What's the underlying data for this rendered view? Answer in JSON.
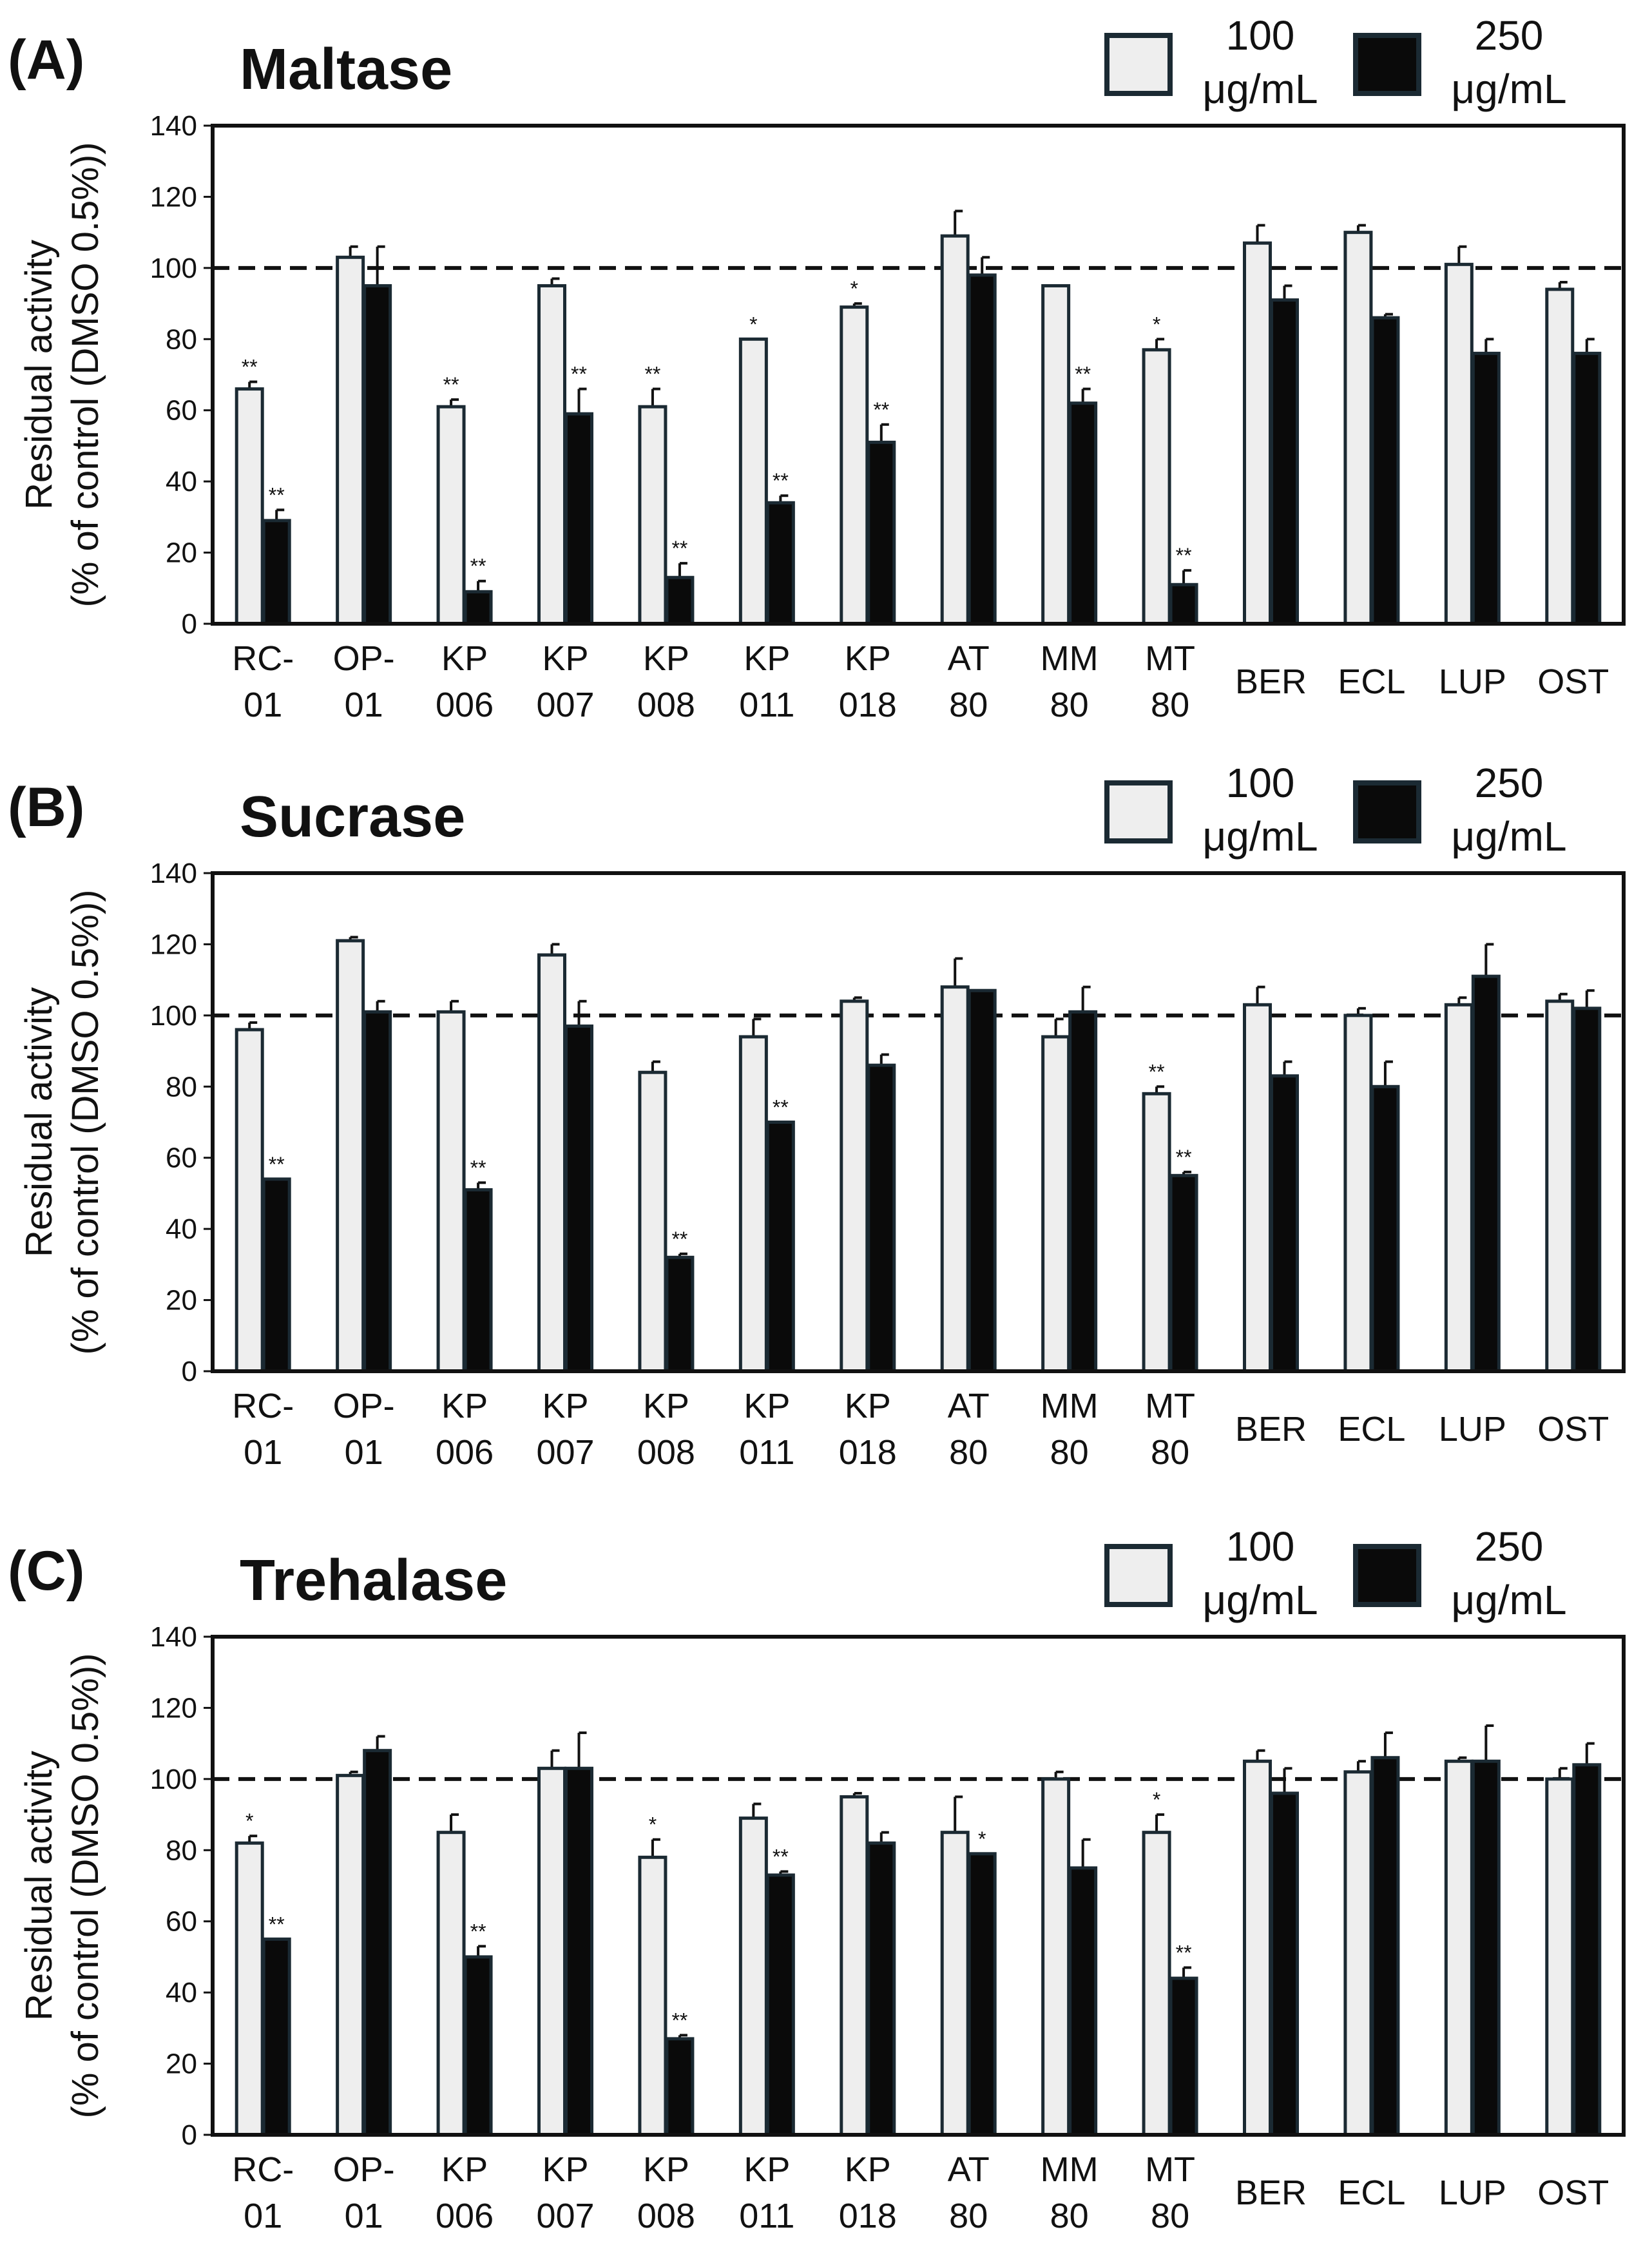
{
  "chart_data": [
    {
      "type": "bar",
      "panel_label": "(A)",
      "title": "Maltase",
      "ylabel_line1": "Residual activity",
      "ylabel_line2": "(% of control (DMSO 0.5%))",
      "xlabel": "",
      "ylim": [
        0,
        140
      ],
      "yticks": [
        0,
        20,
        40,
        60,
        80,
        100,
        120,
        140
      ],
      "reference_line": 100,
      "grid": false,
      "legend_position": "top-right",
      "categories": [
        {
          "line1": "RC-",
          "line2": "01"
        },
        {
          "line1": "OP-",
          "line2": "01"
        },
        {
          "line1": "KP",
          "line2": "006"
        },
        {
          "line1": "KP",
          "line2": "007"
        },
        {
          "line1": "KP",
          "line2": "008"
        },
        {
          "line1": "KP",
          "line2": "011"
        },
        {
          "line1": "KP",
          "line2": "018"
        },
        {
          "line1": "AT",
          "line2": "80"
        },
        {
          "line1": "MM",
          "line2": "80"
        },
        {
          "line1": "MT",
          "line2": "80"
        },
        {
          "line1": "BER",
          "line2": ""
        },
        {
          "line1": "ECL",
          "line2": ""
        },
        {
          "line1": "LUP",
          "line2": ""
        },
        {
          "line1": "OST",
          "line2": ""
        }
      ],
      "series": [
        {
          "name_line1": "100",
          "name_line2": "μg/mL",
          "color": "#eeeeee",
          "values": [
            66,
            103,
            61,
            95,
            61,
            80,
            89,
            109,
            95,
            77,
            107,
            110,
            101,
            94
          ],
          "errors": [
            2,
            3,
            2,
            2,
            5,
            0,
            1,
            7,
            0,
            3,
            5,
            2,
            5,
            2
          ],
          "significance": [
            "**",
            "",
            "**",
            "",
            "**",
            "*",
            "*",
            "",
            "",
            "*",
            "",
            "",
            "",
            ""
          ]
        },
        {
          "name_line1": "250",
          "name_line2": "μg/mL",
          "color": "#0a0a0a",
          "values": [
            29,
            95,
            9,
            59,
            13,
            34,
            51,
            98,
            62,
            11,
            91,
            86,
            76,
            76
          ],
          "errors": [
            3,
            11,
            3,
            7,
            4,
            2,
            5,
            5,
            4,
            4,
            4,
            1,
            4,
            4
          ],
          "significance": [
            "**",
            "",
            "**",
            "**",
            "**",
            "**",
            "**",
            "",
            "**",
            "**",
            "",
            "",
            "",
            ""
          ]
        }
      ]
    },
    {
      "type": "bar",
      "panel_label": "(B)",
      "title": "Sucrase",
      "ylabel_line1": "Residual activity",
      "ylabel_line2": "(% of control (DMSO 0.5%))",
      "xlabel": "",
      "ylim": [
        0,
        140
      ],
      "yticks": [
        0,
        20,
        40,
        60,
        80,
        100,
        120,
        140
      ],
      "reference_line": 100,
      "grid": false,
      "legend_position": "top-right",
      "categories": [
        {
          "line1": "RC-",
          "line2": "01"
        },
        {
          "line1": "OP-",
          "line2": "01"
        },
        {
          "line1": "KP",
          "line2": "006"
        },
        {
          "line1": "KP",
          "line2": "007"
        },
        {
          "line1": "KP",
          "line2": "008"
        },
        {
          "line1": "KP",
          "line2": "011"
        },
        {
          "line1": "KP",
          "line2": "018"
        },
        {
          "line1": "AT",
          "line2": "80"
        },
        {
          "line1": "MM",
          "line2": "80"
        },
        {
          "line1": "MT",
          "line2": "80"
        },
        {
          "line1": "BER",
          "line2": ""
        },
        {
          "line1": "ECL",
          "line2": ""
        },
        {
          "line1": "LUP",
          "line2": ""
        },
        {
          "line1": "OST",
          "line2": ""
        }
      ],
      "series": [
        {
          "name_line1": "100",
          "name_line2": "μg/mL",
          "color": "#eeeeee",
          "values": [
            96,
            121,
            101,
            117,
            84,
            94,
            104,
            108,
            94,
            78,
            103,
            100,
            103,
            104
          ],
          "errors": [
            2,
            1,
            3,
            3,
            3,
            5,
            1,
            8,
            5,
            2,
            5,
            2,
            2,
            2
          ],
          "significance": [
            "",
            "",
            "",
            "",
            "",
            "",
            "",
            "",
            "",
            "**",
            "",
            "",
            "",
            ""
          ]
        },
        {
          "name_line1": "250",
          "name_line2": "μg/mL",
          "color": "#0a0a0a",
          "values": [
            54,
            101,
            51,
            97,
            32,
            70,
            86,
            107,
            101,
            55,
            83,
            80,
            111,
            102
          ],
          "errors": [
            0,
            3,
            2,
            7,
            1,
            0,
            3,
            0,
            7,
            1,
            4,
            7,
            9,
            5
          ],
          "significance": [
            "**",
            "",
            "**",
            "",
            "**",
            "**",
            "",
            "",
            "",
            "**",
            "",
            "",
            "",
            ""
          ]
        }
      ]
    },
    {
      "type": "bar",
      "panel_label": "(C)",
      "title": "Trehalase",
      "ylabel_line1": "Residual activity",
      "ylabel_line2": "(% of control (DMSO 0.5%))",
      "xlabel": "",
      "ylim": [
        0,
        140
      ],
      "yticks": [
        0,
        20,
        40,
        60,
        80,
        100,
        120,
        140
      ],
      "reference_line": 100,
      "grid": false,
      "legend_position": "top-right",
      "categories": [
        {
          "line1": "RC-",
          "line2": "01"
        },
        {
          "line1": "OP-",
          "line2": "01"
        },
        {
          "line1": "KP",
          "line2": "006"
        },
        {
          "line1": "KP",
          "line2": "007"
        },
        {
          "line1": "KP",
          "line2": "008"
        },
        {
          "line1": "KP",
          "line2": "011"
        },
        {
          "line1": "KP",
          "line2": "018"
        },
        {
          "line1": "AT",
          "line2": "80"
        },
        {
          "line1": "MM",
          "line2": "80"
        },
        {
          "line1": "MT",
          "line2": "80"
        },
        {
          "line1": "BER",
          "line2": ""
        },
        {
          "line1": "ECL",
          "line2": ""
        },
        {
          "line1": "LUP",
          "line2": ""
        },
        {
          "line1": "OST",
          "line2": ""
        }
      ],
      "series": [
        {
          "name_line1": "100",
          "name_line2": "μg/mL",
          "color": "#eeeeee",
          "values": [
            82,
            101,
            85,
            103,
            78,
            89,
            95,
            85,
            100,
            85,
            105,
            102,
            105,
            100
          ],
          "errors": [
            2,
            1,
            5,
            5,
            5,
            4,
            1,
            10,
            2,
            5,
            3,
            3,
            1,
            3
          ],
          "significance": [
            "*",
            "",
            "",
            "",
            "*",
            "",
            "",
            "",
            "",
            "*",
            "",
            "",
            "",
            ""
          ]
        },
        {
          "name_line1": "250",
          "name_line2": "μg/mL",
          "color": "#0a0a0a",
          "values": [
            55,
            108,
            50,
            103,
            27,
            73,
            82,
            79,
            75,
            44,
            96,
            106,
            105,
            104
          ],
          "errors": [
            0,
            4,
            3,
            10,
            1,
            1,
            3,
            0,
            8,
            3,
            7,
            7,
            10,
            6
          ],
          "significance": [
            "**",
            "",
            "**",
            "",
            "**",
            "**",
            "",
            "*",
            "",
            "**",
            "",
            "",
            "",
            ""
          ]
        }
      ]
    }
  ]
}
